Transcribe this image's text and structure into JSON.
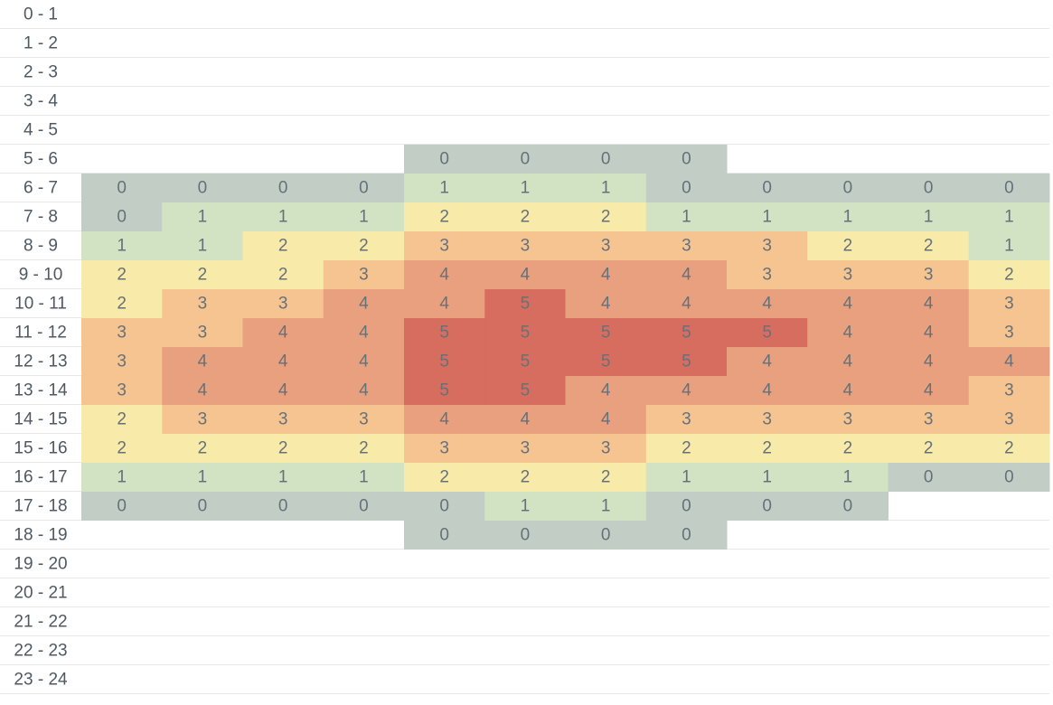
{
  "chart_data": {
    "type": "heatmap",
    "categories": [
      "0 - 1",
      "1 - 2",
      "2 - 3",
      "3 - 4",
      "4 - 5",
      "5 - 6",
      "6 - 7",
      "7 - 8",
      "8 - 9",
      "9 - 10",
      "10 - 11",
      "11 - 12",
      "12 - 13",
      "13 - 14",
      "14 - 15",
      "15 - 16",
      "16 - 17",
      "17 - 18",
      "18 - 19",
      "19 - 20",
      "20 - 21",
      "21 - 22",
      "22 - 23",
      "23 - 24"
    ],
    "columns": 12,
    "color_scale": [
      "#c2cec5",
      "#d2e3c4",
      "#f8eaa8",
      "#f6c491",
      "#e8a07e",
      "#d76d5f"
    ],
    "values": [
      [
        null,
        null,
        null,
        null,
        null,
        null,
        null,
        null,
        null,
        null,
        null,
        null
      ],
      [
        null,
        null,
        null,
        null,
        null,
        null,
        null,
        null,
        null,
        null,
        null,
        null
      ],
      [
        null,
        null,
        null,
        null,
        null,
        null,
        null,
        null,
        null,
        null,
        null,
        null
      ],
      [
        null,
        null,
        null,
        null,
        null,
        null,
        null,
        null,
        null,
        null,
        null,
        null
      ],
      [
        null,
        null,
        null,
        null,
        null,
        null,
        null,
        null,
        null,
        null,
        null,
        null
      ],
      [
        null,
        null,
        null,
        null,
        0,
        0,
        0,
        0,
        null,
        null,
        null,
        null
      ],
      [
        0,
        0,
        0,
        0,
        1,
        1,
        1,
        0,
        0,
        0,
        0,
        0
      ],
      [
        0,
        1,
        1,
        1,
        2,
        2,
        2,
        1,
        1,
        1,
        1,
        1
      ],
      [
        1,
        1,
        2,
        2,
        3,
        3,
        3,
        3,
        3,
        2,
        2,
        1
      ],
      [
        2,
        2,
        2,
        3,
        4,
        4,
        4,
        4,
        3,
        3,
        3,
        2
      ],
      [
        2,
        3,
        3,
        4,
        4,
        5,
        4,
        4,
        4,
        4,
        4,
        3
      ],
      [
        3,
        3,
        4,
        4,
        5,
        5,
        5,
        5,
        5,
        4,
        4,
        3
      ],
      [
        3,
        4,
        4,
        4,
        5,
        5,
        5,
        5,
        4,
        4,
        4,
        4
      ],
      [
        3,
        4,
        4,
        4,
        5,
        5,
        4,
        4,
        4,
        4,
        4,
        3
      ],
      [
        2,
        3,
        3,
        3,
        4,
        4,
        4,
        3,
        3,
        3,
        3,
        3
      ],
      [
        2,
        2,
        2,
        2,
        3,
        3,
        3,
        2,
        2,
        2,
        2,
        2
      ],
      [
        1,
        1,
        1,
        1,
        2,
        2,
        2,
        1,
        1,
        1,
        0,
        0
      ],
      [
        0,
        0,
        0,
        0,
        0,
        1,
        1,
        0,
        0,
        0,
        null,
        null
      ],
      [
        null,
        null,
        null,
        null,
        0,
        0,
        0,
        0,
        null,
        null,
        null,
        null
      ],
      [
        null,
        null,
        null,
        null,
        null,
        null,
        null,
        null,
        null,
        null,
        null,
        null
      ],
      [
        null,
        null,
        null,
        null,
        null,
        null,
        null,
        null,
        null,
        null,
        null,
        null
      ],
      [
        null,
        null,
        null,
        null,
        null,
        null,
        null,
        null,
        null,
        null,
        null,
        null
      ],
      [
        null,
        null,
        null,
        null,
        null,
        null,
        null,
        null,
        null,
        null,
        null,
        null
      ],
      [
        null,
        null,
        null,
        null,
        null,
        null,
        null,
        null,
        null,
        null,
        null,
        null
      ]
    ]
  }
}
